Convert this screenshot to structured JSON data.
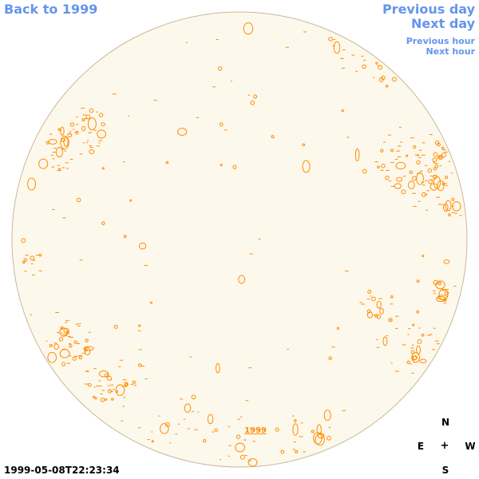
{
  "nav": {
    "back_label": "Back to 1999",
    "previous_day": "Previous day",
    "next_day": "Next day",
    "previous_hour": "Previous hour",
    "next_hour": "Next hour"
  },
  "compass": {
    "north": "N",
    "east": "E",
    "center": "+",
    "west": "W",
    "south": "S"
  },
  "timestamp": "1999-05-08T22:23:34",
  "year_link": "1999",
  "colors": {
    "disk_fill": "#fdf8ec",
    "disk_stroke": "#c8b99a",
    "feature": "#ff8c00",
    "link": "#6495ed"
  }
}
